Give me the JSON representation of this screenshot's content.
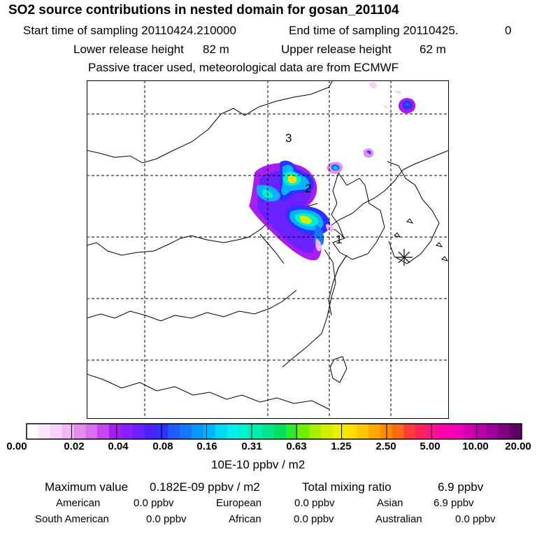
{
  "header": {
    "title": "SO2 source contributions in nested domain for gosan_201104",
    "start_label": "Start time of sampling 20110424.210000",
    "end_label": "End time of sampling 20110425.",
    "end_value": "0",
    "lower_label": "Lower release height",
    "lower_value": "82 m",
    "upper_label": "Upper release height",
    "upper_value": "62 m",
    "note": "Passive tracer used, meteorological data are from ECMWF"
  },
  "map": {
    "markers": [
      {
        "id": "1",
        "label": "1"
      },
      {
        "id": "2",
        "label": "2"
      },
      {
        "id": "3",
        "label": "3"
      }
    ],
    "receptor": "gosan-station-marker",
    "land_line_color": "#000000",
    "grid_color": "#000000"
  },
  "colorbar": {
    "unit": "10E-10 ppbv / m2",
    "tick_labels": [
      "0.00",
      "0.02",
      "0.04",
      "0.08",
      "0.16",
      "0.31",
      "0.63",
      "1.25",
      "2.50",
      "5.00",
      "10.00",
      "20.00"
    ],
    "colors": [
      "#ffffff",
      "#fbe6fb",
      "#f5d2f7",
      "#f0b8f5",
      "#e48ef0",
      "#d86ef0",
      "#c448f0",
      "#a81ef0",
      "#8a20ff",
      "#6a20ff",
      "#4a22ff",
      "#3030ff",
      "#1e5cff",
      "#1478ff",
      "#0a96ff",
      "#00b4ff",
      "#00d8f8",
      "#00f0ee",
      "#00f0cc",
      "#00eeaa",
      "#00e68a",
      "#00e060",
      "#30ea30",
      "#70f000",
      "#a8f000",
      "#d0f000",
      "#eeee00",
      "#ffe000",
      "#ffc800",
      "#ffa800",
      "#ff8c00",
      "#ff6a10",
      "#ff3c3c",
      "#ff2060",
      "#ff1090",
      "#ff00b0",
      "#ee00b8",
      "#d400b0",
      "#b800a8",
      "#9c0098",
      "#7c0080",
      "#5c0066"
    ]
  },
  "stats": {
    "max_label": "Maximum value",
    "max_value": "0.182E-09 ppbv / m2",
    "total_label": "Total mixing ratio",
    "total_value": "6.9 ppbv",
    "regions": [
      {
        "name": "American",
        "value": "0.0 ppbv"
      },
      {
        "name": "European",
        "value": "0.0 ppbv"
      },
      {
        "name": "Asian",
        "value": "6.9 ppbv"
      },
      {
        "name": "South American",
        "value": "0.0 ppbv"
      },
      {
        "name": "African",
        "value": "0.0 ppbv"
      },
      {
        "name": "Australian",
        "value": "0.0 ppbv"
      }
    ]
  }
}
